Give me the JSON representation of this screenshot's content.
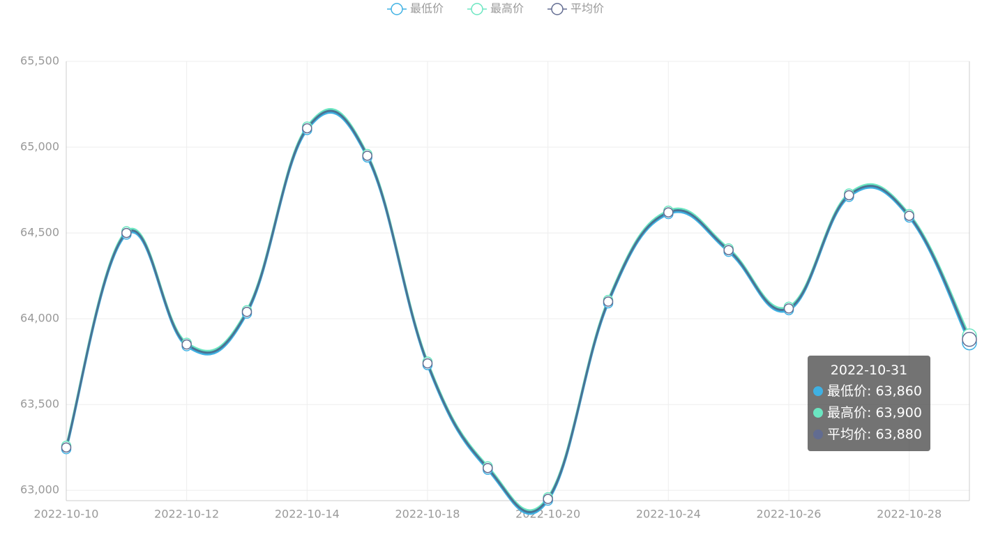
{
  "chart_data": {
    "type": "line",
    "categories": [
      "2022-10-10",
      null,
      "2022-10-12",
      null,
      "2022-10-14",
      null,
      "2022-10-18",
      null,
      "2022-10-20",
      null,
      "2022-10-24",
      null,
      "2022-10-26",
      null,
      "2022-10-28",
      "2022-10-31"
    ],
    "series": [
      {
        "name": "最低价",
        "color": "#3fb1e3",
        "values": [
          63240,
          64490,
          63840,
          64030,
          65100,
          64940,
          63730,
          63120,
          62940,
          64090,
          64610,
          64390,
          64050,
          64710,
          64590,
          63860
        ],
        "value_labels": [
          "63,240",
          "64,490",
          "63,840",
          "64,030",
          "65,100",
          "64,940",
          "63,730",
          "63,120",
          "62,940",
          "64,090",
          "64,610",
          "64,390",
          "64,050",
          "64,710",
          "64,590",
          "63,860"
        ]
      },
      {
        "name": "最高价",
        "color": "#6be6c1",
        "values": [
          63260,
          64510,
          63860,
          64050,
          65120,
          64960,
          63750,
          63140,
          62960,
          64110,
          64630,
          64410,
          64070,
          64730,
          64610,
          63900
        ],
        "value_labels": [
          "63,260",
          "64,510",
          "63,860",
          "64,050",
          "65,120",
          "64,960",
          "63,750",
          "63,140",
          "62,960",
          "64,110",
          "64,630",
          "64,410",
          "64,070",
          "64,730",
          "64,610",
          "63,900"
        ]
      },
      {
        "name": "平均价",
        "color": "#626c91",
        "values": [
          63250,
          64500,
          63850,
          64040,
          65110,
          64950,
          63740,
          63130,
          62950,
          64100,
          64620,
          64400,
          64060,
          64720,
          64600,
          63880
        ],
        "value_labels": [
          "63,250",
          "64,500",
          "63,850",
          "64,040",
          "65,110",
          "64,950",
          "63,740",
          "63,130",
          "62,950",
          "64,100",
          "64,620",
          "64,400",
          "64,060",
          "64,720",
          "64,600",
          "63,880"
        ]
      }
    ],
    "ylim": [
      62940,
      65500
    ],
    "yticks": [
      {
        "value": 63000,
        "label": "63,000"
      },
      {
        "value": 63500,
        "label": "63,500"
      },
      {
        "value": 64000,
        "label": "64,000"
      },
      {
        "value": 64500,
        "label": "64,500"
      },
      {
        "value": 65000,
        "label": "65,000"
      },
      {
        "value": 65500,
        "label": "65,500"
      }
    ],
    "grid": true,
    "smooth": true,
    "legend": "top",
    "tooltip_index": 15
  }
}
